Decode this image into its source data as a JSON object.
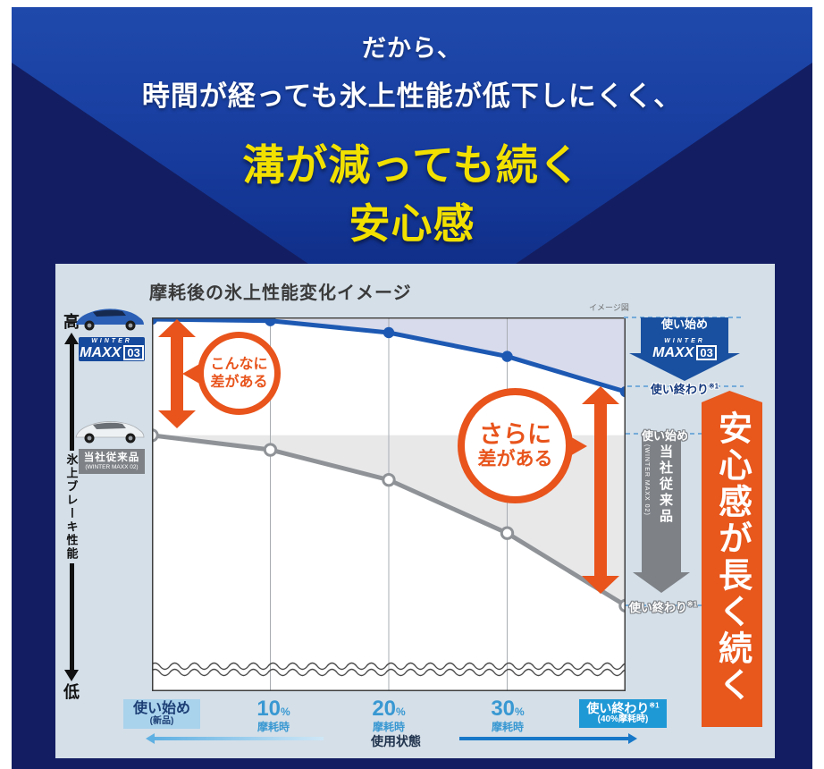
{
  "header": {
    "line1": "だから、",
    "line2": "時間が経っても氷上性能が低下しにくく、",
    "line3": "溝が減っても続く",
    "line4": "安心感"
  },
  "chart": {
    "title": "摩耗後の氷上性能変化イメージ",
    "note": "イメージ図",
    "y_high": "高",
    "y_low": "低",
    "y_label": "氷上ブレーキ性能",
    "brand": {
      "winter": "WINTER",
      "maxx": "MAXX",
      "num": "03"
    },
    "old_label": {
      "name": "当社従来品",
      "sub": "(WINTER MAXX 02)"
    },
    "blue_start": "使い始め",
    "blue_end": "使い終わり",
    "blue_end_ref": "※1",
    "gray_start": "使い始め",
    "gray_end": "使い終わり",
    "gray_end_ref": "※1",
    "old_vertical": {
      "name": "当社従来品",
      "sub": "(WINTER MAXX 02)"
    },
    "callout1": {
      "l1": "こんなに",
      "l2": "差がある"
    },
    "callout2": {
      "l1": "さらに",
      "l2": "差がある"
    },
    "banner": "安心感が長く続く",
    "x_start": {
      "main": "使い始め",
      "sub": "(新品)"
    },
    "wear": [
      {
        "num": "10",
        "pct": "%",
        "sub": "摩耗時"
      },
      {
        "num": "20",
        "pct": "%",
        "sub": "摩耗時"
      },
      {
        "num": "30",
        "pct": "%",
        "sub": "摩耗時"
      }
    ],
    "x_end": {
      "main": "使い終わり",
      "ref": "※1",
      "sub": "(40%摩耗時)"
    },
    "x_state": "使用状態",
    "colors": {
      "accent_orange": "#e8541c",
      "brand_blue": "#164a9c",
      "line_blue": "#1d59b3",
      "line_gray": "#8f9397",
      "light_blue_box": "#a9d2ec",
      "cyan_box": "#1f98d6",
      "header_yellow": "#f2e100",
      "navy": "#131e62"
    }
  },
  "chart_data": {
    "type": "line",
    "title": "摩耗後の氷上性能変化イメージ",
    "note": "イメージ図",
    "xlabel": "使用状態",
    "ylabel": "氷上ブレーキ性能",
    "y_axis_annotations": {
      "top": "高",
      "bottom": "低"
    },
    "x_categories": [
      "使い始め(新品)",
      "10%摩耗時",
      "20%摩耗時",
      "30%摩耗時",
      "使い終わり※1(40%摩耗時)"
    ],
    "y_scale": "relative performance, estimated 0-100 (conceptual diagram, axis break near bottom)",
    "ylim": [
      0,
      100
    ],
    "grid": "vertical-only",
    "axis_break": true,
    "legend_position": "left",
    "series": [
      {
        "name": "WINTER MAXX 03",
        "color": "#1d59b3",
        "fill": "#d8dbec",
        "dot": "filled",
        "values": [
          100,
          99.6,
          96.4,
          90,
          80.5
        ],
        "start_label": "使い始め",
        "end_label": "使い終わり※1"
      },
      {
        "name": "当社従来品 (WINTER MAXX 02)",
        "color": "#8f9397",
        "fill": "#e8e8e9",
        "dot": "open",
        "values": [
          68.8,
          64.9,
          56.8,
          42.5,
          23
        ],
        "start_label": "使い始め",
        "end_label": "使い終わり※1"
      }
    ],
    "annotations": [
      "こんなに差がある",
      "さらに差がある",
      "安心感が長く続く"
    ]
  }
}
